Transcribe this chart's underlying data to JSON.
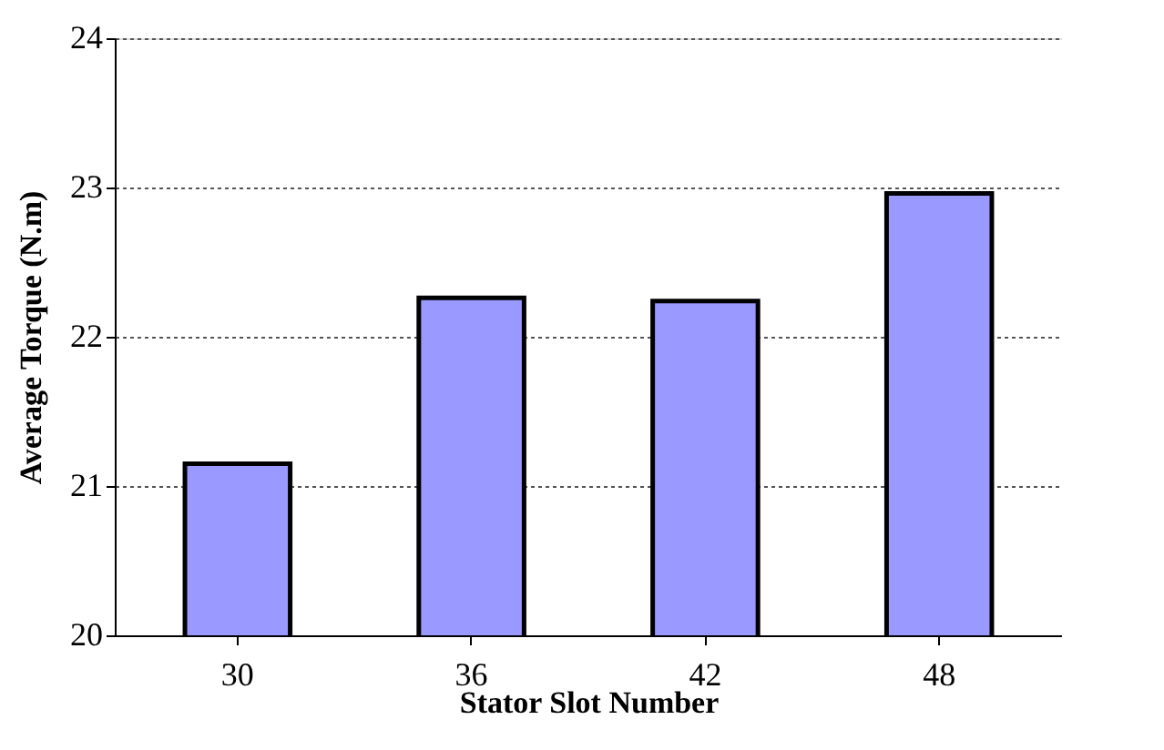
{
  "chart_data": {
    "type": "bar",
    "xlabel": "Stator Slot Number",
    "ylabel": "Average Torque (N.m)",
    "categories": [
      "30",
      "36",
      "42",
      "48"
    ],
    "values": [
      21.15,
      22.26,
      22.24,
      22.96
    ],
    "color": "#9999ff",
    "ylim": [
      20,
      24
    ],
    "yticks": [
      20,
      21,
      22,
      23,
      24
    ],
    "grid": "y"
  }
}
